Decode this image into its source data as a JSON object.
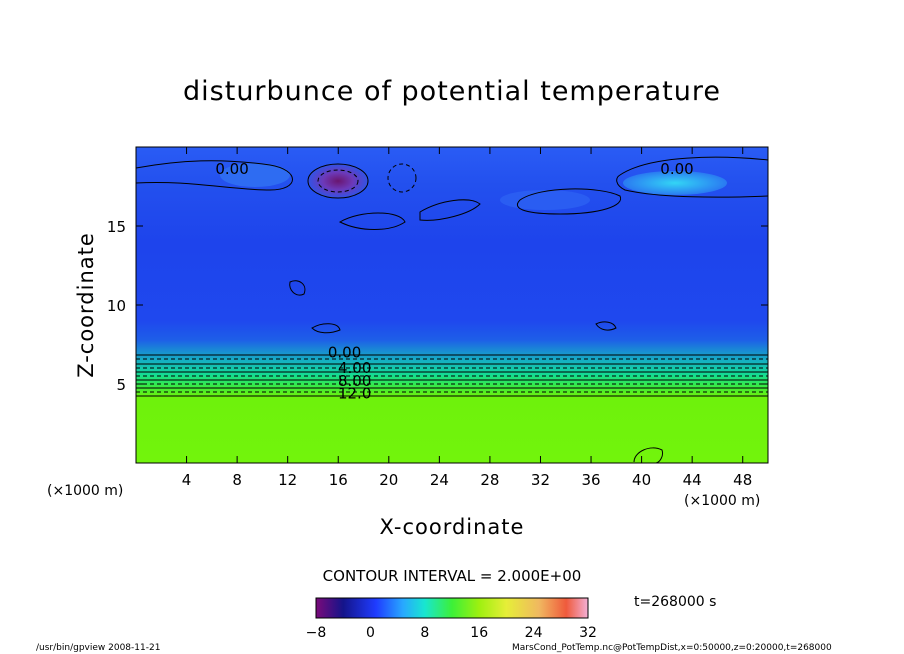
{
  "chart_data": {
    "type": "heatmap",
    "title": "disturbunce of potential temperature",
    "xlabel": "X-coordinate",
    "ylabel": "Z-coordinate",
    "x_unit_left": "(×1000 m)",
    "x_unit_right": "(×1000 m)",
    "x_ticks": [
      "4",
      "8",
      "12",
      "16",
      "20",
      "24",
      "28",
      "32",
      "36",
      "40",
      "44",
      "48"
    ],
    "x_tick_values": [
      4,
      8,
      12,
      16,
      20,
      24,
      28,
      32,
      36,
      40,
      44,
      48
    ],
    "y_ticks": [
      "5",
      "10",
      "15"
    ],
    "y_tick_values": [
      5,
      10,
      15
    ],
    "xlim": [
      0,
      50
    ],
    "ylim": [
      0,
      20
    ],
    "contour_labels": [
      {
        "text": "0.00",
        "x": 7.6,
        "z": 18.6
      },
      {
        "text": "0.00",
        "x": 42.8,
        "z": 18.6
      },
      {
        "text": "0.00",
        "x": 16.5,
        "z": 7.0
      },
      {
        "text": "4.00",
        "x": 17.3,
        "z": 6.0
      },
      {
        "text": "8.00",
        "x": 17.3,
        "z": 5.2
      },
      {
        "text": "12.0",
        "x": 17.3,
        "z": 4.4
      }
    ],
    "contour_interval_text": "CONTOUR INTERVAL = 2.000E+00",
    "colorbar_ticks": [
      "−8",
      "0",
      "8",
      "16",
      "24",
      "32"
    ],
    "colorbar_values": [
      -8,
      0,
      8,
      16,
      24,
      32
    ],
    "time_label": "t=268000 s",
    "colors": {
      "upper_field": "#1f46f0",
      "stable_layer": "#12e092",
      "lower_field": "#6ef20c",
      "warm_anomaly": "#8a1a8a"
    }
  },
  "footer": {
    "left": "/usr/bin/gpview   2008-11-21",
    "right": "MarsCond_PotTemp.nc@PotTempDist,x=0:50000,z=0:20000,t=268000"
  }
}
